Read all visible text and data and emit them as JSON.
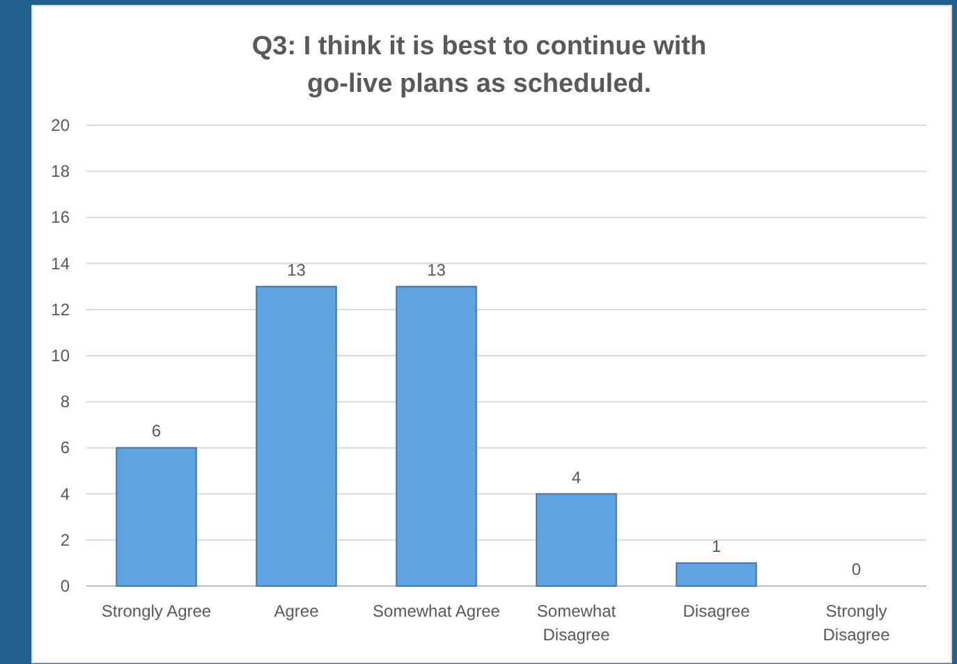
{
  "chart_data": {
    "type": "bar",
    "title": "Q3: I think it is best to continue with\ngo-live plans as scheduled.",
    "categories": [
      "Strongly Agree",
      "Agree",
      "Somewhat Agree",
      "Somewhat Disagree",
      "Disagree",
      "Strongly Disagree"
    ],
    "values": [
      6,
      13,
      13,
      4,
      1,
      0
    ],
    "color": "#5fa3e0",
    "ylim": [
      0,
      20
    ],
    "yticks": [
      0,
      2,
      4,
      6,
      8,
      10,
      12,
      14,
      16,
      18,
      20
    ],
    "grid": "y",
    "data_labels": true
  }
}
